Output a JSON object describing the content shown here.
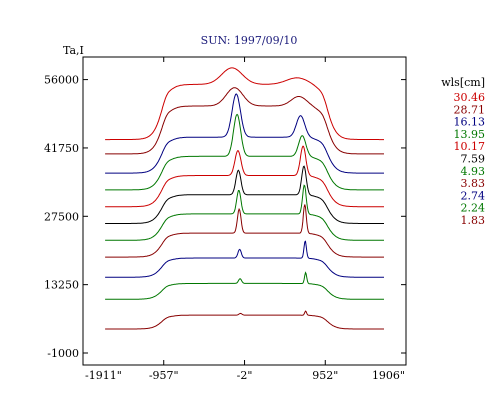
{
  "chart_data": {
    "type": "line",
    "title": "SUN: 1997/09/10",
    "ylabel": "Ta,I",
    "xlim": [
      -1911,
      1906
    ],
    "ylim": [
      -1000,
      58000
    ],
    "x_ticks": [
      -1911,
      -957,
      -2,
      952,
      1906
    ],
    "x_tick_labels": [
      "-1911\"",
      "-957\"",
      "-2\"",
      "952\"",
      "1906\""
    ],
    "y_ticks": [
      -1000,
      13250,
      27500,
      41750,
      56000
    ],
    "y_tick_labels": [
      "-1000",
      "13250",
      "27500",
      "41750",
      "56000"
    ],
    "legend_title": "wls[cm]",
    "legend_position": "right",
    "series": [
      {
        "name": "30.46",
        "color": "#cc0000",
        "offset": 43500,
        "height": 11500,
        "peaks": [
          {
            "x": -150,
            "amp": 0.3,
            "w": 170
          },
          {
            "x": 620,
            "amp": 0.12,
            "w": 180
          }
        ]
      },
      {
        "name": "28.71",
        "color": "#880000",
        "offset": 40500,
        "height": 10000,
        "peaks": [
          {
            "x": -120,
            "amp": 0.38,
            "w": 140
          },
          {
            "x": 640,
            "amp": 0.2,
            "w": 130
          }
        ]
      },
      {
        "name": "16.13",
        "color": "#000080",
        "offset": 36500,
        "height": 7500,
        "peaks": [
          {
            "x": -100,
            "amp": 1.2,
            "w": 70
          },
          {
            "x": 660,
            "amp": 0.6,
            "w": 70
          }
        ]
      },
      {
        "name": "13.95",
        "color": "#007700",
        "offset": 33000,
        "height": 7000,
        "peaks": [
          {
            "x": -90,
            "amp": 1.25,
            "w": 60
          },
          {
            "x": 680,
            "amp": 0.62,
            "w": 60
          }
        ]
      },
      {
        "name": "10.17",
        "color": "#cc0000",
        "offset": 29500,
        "height": 6500,
        "peaks": [
          {
            "x": -80,
            "amp": 0.8,
            "w": 50
          },
          {
            "x": 690,
            "amp": 0.95,
            "w": 45
          }
        ]
      },
      {
        "name": "7.59",
        "color": "#000000",
        "offset": 26000,
        "height": 6000,
        "peaks": [
          {
            "x": -75,
            "amp": 0.85,
            "w": 42
          },
          {
            "x": 700,
            "amp": 1.0,
            "w": 38
          }
        ]
      },
      {
        "name": "4.93",
        "color": "#007700",
        "offset": 22500,
        "height": 5500,
        "peaks": [
          {
            "x": -70,
            "amp": 0.9,
            "w": 35
          },
          {
            "x": 705,
            "amp": 1.1,
            "w": 30
          }
        ]
      },
      {
        "name": "3.83",
        "color": "#880000",
        "offset": 19000,
        "height": 5000,
        "peaks": [
          {
            "x": -65,
            "amp": 1.0,
            "w": 30
          },
          {
            "x": 710,
            "amp": 1.2,
            "w": 25
          }
        ]
      },
      {
        "name": "2.74",
        "color": "#000080",
        "offset": 14800,
        "height": 4000,
        "peaks": [
          {
            "x": -60,
            "amp": 0.45,
            "w": 28
          },
          {
            "x": 715,
            "amp": 0.9,
            "w": 20
          }
        ]
      },
      {
        "name": "2.24",
        "color": "#007700",
        "offset": 10200,
        "height": 3300,
        "peaks": [
          {
            "x": -55,
            "amp": 0.3,
            "w": 26
          },
          {
            "x": 720,
            "amp": 0.7,
            "w": 18
          }
        ]
      },
      {
        "name": "1.83",
        "color": "#880000",
        "offset": 4000,
        "height": 2900,
        "peaks": [
          {
            "x": -50,
            "amp": 0.12,
            "w": 25
          },
          {
            "x": 720,
            "amp": 0.3,
            "w": 16
          }
        ]
      }
    ]
  }
}
